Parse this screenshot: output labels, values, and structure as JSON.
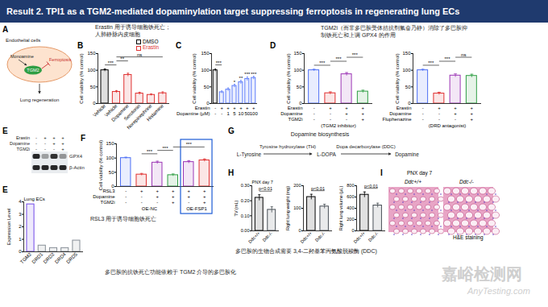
{
  "header": {
    "title": "Result 2. TPI1 as a TGM2-mediated dopaminylation target suppressing ferroptosis in regenerating lung ECs"
  },
  "notes": [
    {
      "lines": [
        "Erastin 用于诱导细胞铁死亡；",
        "人肺静脉内皮细胞"
      ]
    },
    {
      "lines": [
        "TGM2i（而非多巴胺受体拮抗剂氟奋乃静）消除了多巴胺抑",
        "制铁死亡和上调 GPX4 的作用"
      ]
    },
    {
      "lines": [
        "RSL3 用于诱导细胞铁死亡"
      ]
    },
    {
      "lines": [
        "多巴胺的生物合成需要 3,4-二羟基苯丙氨酸脱羧酶 (DDC)"
      ]
    },
    {
      "lines": [
        "多巴胺的抗铁死亡功能依赖于 TGM2 介导的多巴胺化"
      ]
    }
  ],
  "diagram_A": {
    "label": "A",
    "nodes": {
      "cells": "Endothelial cells",
      "input": "Monoamine",
      "enzyme": "TGM2",
      "process": "Ferroptosis",
      "outcome": "Lung regeneration"
    }
  },
  "blot_E": {
    "label": "E",
    "conditions": [
      {
        "name": "Erastin",
        "values": [
          "-",
          "+",
          "+",
          "+"
        ]
      },
      {
        "name": "Dopamine",
        "values": [
          "-",
          "-",
          "+",
          "+"
        ]
      },
      {
        "name": "TGM2i",
        "values": [
          "-",
          "-",
          "-",
          "+"
        ]
      }
    ],
    "bands": [
      {
        "name": "GPX4",
        "intensity": [
          0.9,
          0.35,
          0.85,
          0.4
        ]
      },
      {
        "name": "β-Actin",
        "intensity": [
          0.9,
          0.9,
          0.9,
          0.9
        ]
      }
    ]
  },
  "diagram_G": {
    "label": "G",
    "title": "Dopamine biosynthesis",
    "steps": [
      "L-Tyrosine",
      "L-DOPA",
      "Dopamine"
    ],
    "enzymes": [
      "Tyrosine hydroxylase (TH)",
      "Dopa decarboxylase (DDC)"
    ]
  },
  "images_I": {
    "label": "I",
    "title": "PNX day 7",
    "panels": [
      "Ddc+/+",
      "Ddc-/-"
    ],
    "caption": "H&E staining"
  },
  "watermark": [
    "嘉峪检测网",
    "AnyTesting.com"
  ],
  "chart_data": [
    {
      "label": "B",
      "type": "bar",
      "ylabel": "Cell viability (% control)",
      "categories": [
        "Vehicle",
        "Vehicle",
        "Dopamine",
        "Serotonin",
        "Norepinephrine",
        "Histamine"
      ],
      "series": [
        {
          "name": "DMSO",
          "color": "#000000",
          "values": [
            100,
            null,
            null,
            null,
            null,
            null
          ],
          "errors": [
            4,
            null,
            null,
            null,
            null,
            null
          ]
        },
        {
          "name": "Erastin",
          "color": "#e03131",
          "values": [
            null,
            35,
            86,
            30,
            26,
            31
          ],
          "errors": [
            null,
            4,
            5,
            4,
            3,
            4
          ]
        }
      ],
      "ylim": [
        0,
        150
      ],
      "yticks": [
        0,
        50,
        100,
        150
      ],
      "legend": "top-right",
      "comparisons": [
        {
          "bars": [
            0,
            1
          ],
          "label": "***"
        },
        {
          "bars": [
            1,
            2
          ],
          "label": "**"
        },
        {
          "bars": [
            1,
            5
          ],
          "label": "ns"
        }
      ]
    },
    {
      "label": "C",
      "type": "bar",
      "ylabel": "Cell viability (% control)",
      "conditions": [
        {
          "name": "Erastin",
          "values": [
            "-",
            "+",
            "+",
            "+",
            "+",
            "+",
            "+"
          ]
        },
        {
          "name": "Dopamine (μM)",
          "values": [
            "-",
            "-",
            "1",
            "5",
            "10",
            "50",
            "100"
          ]
        }
      ],
      "values": [
        100,
        34,
        42,
        53,
        64,
        74,
        77
      ],
      "errors": [
        4,
        4,
        5,
        5,
        6,
        6,
        5
      ],
      "colors": [
        "#000000",
        "#5c7cfa",
        "#5c7cfa",
        "#5c7cfa",
        "#5c7cfa",
        "#5c7cfa",
        "#5c7cfa"
      ],
      "ylim": [
        0,
        150
      ],
      "yticks": [
        0,
        50,
        100,
        150
      ],
      "comparisons": [
        {
          "bars": [
            0,
            1
          ],
          "label": "***"
        }
      ],
      "bar_marks": [
        null,
        null,
        null,
        "*",
        "**",
        "***",
        "***"
      ]
    },
    {
      "label": "D",
      "type": "bar",
      "ylabel": "Cell viability (% control)",
      "conditions": [
        {
          "name": "Erastin",
          "values": [
            "-",
            "+",
            "+",
            "+"
          ]
        },
        {
          "name": "Dopamine",
          "values": [
            "-",
            "-",
            "+",
            "+"
          ]
        },
        {
          "name": "TGM2i",
          "values": [
            "-",
            "-",
            "-",
            "+"
          ]
        }
      ],
      "note": "(TGM2 inhibitor)",
      "values": [
        100,
        31,
        88,
        36
      ],
      "errors": [
        3,
        4,
        5,
        4
      ],
      "colors": [
        "#4c6ef5",
        "#e03131",
        "#9c36b5",
        "#2f9e44"
      ],
      "ylim": [
        0,
        150
      ],
      "yticks": [
        0,
        50,
        100,
        150
      ],
      "comparisons": [
        {
          "bars": [
            0,
            1
          ],
          "label": "***"
        },
        {
          "bars": [
            1,
            2
          ],
          "label": "***"
        },
        {
          "bars": [
            2,
            3
          ],
          "label": "***"
        }
      ]
    },
    {
      "type": "bar",
      "ylabel": "Cell viability (% control)",
      "conditions": [
        {
          "name": "Erastin",
          "values": [
            "-",
            "+",
            "+",
            "+"
          ]
        },
        {
          "name": "Dopamine",
          "values": [
            "-",
            "-",
            "+",
            "+"
          ]
        },
        {
          "name": "Fluphenazine",
          "values": [
            "-",
            "-",
            "-",
            "+"
          ]
        }
      ],
      "note": "(DRD antagonist)",
      "values": [
        100,
        30,
        84,
        83
      ],
      "errors": [
        3,
        4,
        5,
        5
      ],
      "colors": [
        "#4c6ef5",
        "#e03131",
        "#9c36b5",
        "#2f9e44"
      ],
      "ylim": [
        0,
        150
      ],
      "yticks": [
        0,
        50,
        100,
        150
      ],
      "comparisons": [
        {
          "bars": [
            0,
            1
          ],
          "label": "***"
        },
        {
          "bars": [
            1,
            2
          ],
          "label": "***"
        },
        {
          "bars": [
            2,
            3
          ],
          "label": "ns"
        }
      ]
    },
    {
      "label": "F",
      "type": "bar",
      "ylabel": "Cell viability (% control)",
      "conditions": [
        {
          "name": "RSL3",
          "values": [
            "-",
            "+",
            "+",
            "+",
            "+",
            "+"
          ]
        },
        {
          "name": "Dopamine",
          "values": [
            "-",
            "-",
            "+",
            "+",
            "+",
            "+"
          ]
        },
        {
          "name": "TGM2i",
          "values": [
            "-",
            "-",
            "-",
            "+",
            "-",
            "+"
          ]
        }
      ],
      "groups": [
        {
          "name": "OE-NC",
          "bars": [
            0,
            3
          ]
        },
        {
          "name": "OE-FSP1",
          "bars": [
            4,
            5
          ]
        }
      ],
      "values": [
        100,
        42,
        84,
        40,
        86,
        92
      ],
      "errors": [
        3,
        4,
        5,
        4,
        5,
        5
      ],
      "colors": [
        "#4c6ef5",
        "#e03131",
        "#9c36b5",
        "#2f9e44",
        "#9c36b5",
        "#e03131"
      ],
      "ylim": [
        0,
        150
      ],
      "yticks": [
        0,
        50,
        100,
        150
      ],
      "comparisons": [
        {
          "bars": [
            1,
            2
          ],
          "label": "***"
        },
        {
          "bars": [
            2,
            3
          ],
          "label": "***"
        },
        {
          "bars": [
            3,
            5
          ],
          "label": "***"
        }
      ]
    },
    {
      "label": "E",
      "type": "bar",
      "title": "Lung ECs",
      "ylabel": "Expression Level",
      "categories": [
        "TGM2",
        "DRD1",
        "DRD2",
        "DRD4",
        "DRD5"
      ],
      "values": [
        3.8,
        0.5,
        0.3,
        0.3,
        0.9
      ],
      "colors": [
        "#7048e8",
        "#868e96",
        "#868e96",
        "#868e96",
        "#868e96"
      ],
      "ylim": [
        0,
        4
      ],
      "yticks": [
        0,
        1,
        2,
        3,
        4
      ]
    },
    {
      "label": "H",
      "type": "bar",
      "title": "PNX day 7",
      "ylabel": "TV (mL)",
      "categories": [
        "Ddc+/+",
        "Ddc-/-"
      ],
      "values": [
        0.22,
        0.14
      ],
      "errors": [
        0.02,
        0.02
      ],
      "colors": [
        "#000000",
        "#495057"
      ],
      "ylim": [
        0,
        0.3
      ],
      "yticks": [
        {
          "value": 0,
          "label": "0.00"
        },
        {
          "value": 0.1,
          "label": "0.10"
        },
        {
          "value": 0.2,
          "label": "0.20"
        },
        {
          "value": 0.3,
          "label": "0.30"
        }
      ],
      "comparisons": [
        {
          "bars": [
            0,
            1
          ],
          "label": "p<0.01"
        }
      ]
    },
    {
      "type": "bar",
      "ylabel": "Right lung weight (mg)",
      "categories": [
        "Ddc+/+",
        "Ddc-/-"
      ],
      "values": [
        150,
        108
      ],
      "errors": [
        12,
        10
      ],
      "colors": [
        "#000000",
        "#495057"
      ],
      "ylim": [
        0,
        200
      ],
      "yticks": [
        0,
        100,
        200
      ],
      "comparisons": [
        {
          "bars": [
            0,
            1
          ],
          "label": "p<0.01"
        }
      ]
    },
    {
      "type": "bar",
      "ylabel": "Right lung volume (μL)",
      "categories": [
        "Ddc+/+",
        "Ddc-/-"
      ],
      "values": [
        640,
        450
      ],
      "errors": [
        50,
        40
      ],
      "colors": [
        "#000000",
        "#495057"
      ],
      "ylim": [
        0,
        800
      ],
      "yticks": [
        0,
        200,
        400,
        600,
        800
      ],
      "comparisons": [
        {
          "bars": [
            0,
            1
          ],
          "label": "p<0.01"
        }
      ]
    }
  ]
}
